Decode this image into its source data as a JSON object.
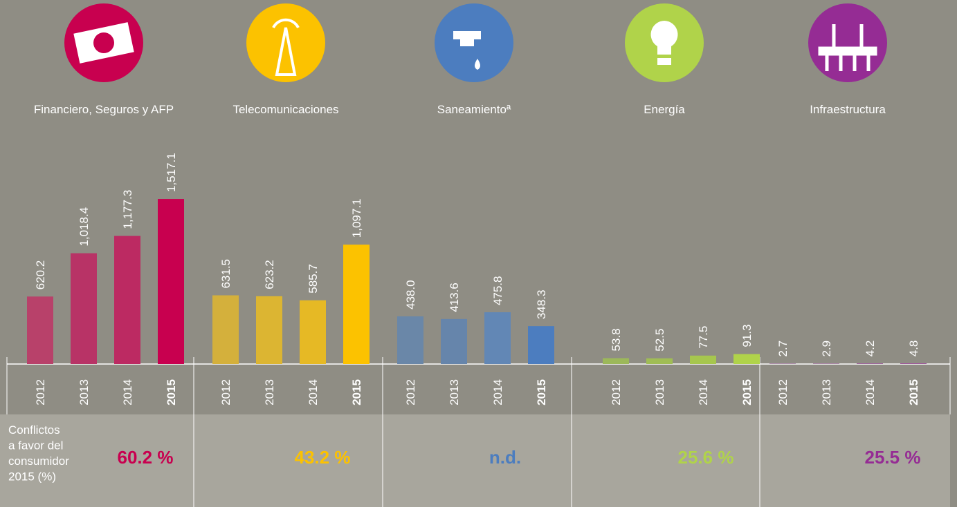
{
  "chart_data": [
    {
      "type": "bar",
      "title": "Financiero, Seguros y AFP",
      "categories": [
        "2012",
        "2013",
        "2014",
        "2015"
      ],
      "values": [
        620.2,
        1018.4,
        1177.3,
        1517.1
      ],
      "value_labels": [
        "620.2",
        "1,018.4",
        "1,177.3",
        "1,517.1"
      ],
      "colors": [
        "#b8416a",
        "#b83366",
        "#bc2a62",
        "#c8004f"
      ],
      "ylim": [
        0,
        1600
      ]
    },
    {
      "type": "bar",
      "title": "Telecomunicaciones",
      "categories": [
        "2012",
        "2013",
        "2014",
        "2015"
      ],
      "values": [
        631.5,
        623.2,
        585.7,
        1097.1
      ],
      "value_labels": [
        "631.5",
        "623.2",
        "585.7",
        "1,097.1"
      ],
      "colors": [
        "#d4b03c",
        "#dcb532",
        "#e6b925",
        "#fcc200"
      ],
      "ylim": [
        0,
        1600
      ]
    },
    {
      "type": "bar",
      "title": "Saneamientoª",
      "categories": [
        "2012",
        "2013",
        "2014",
        "2015"
      ],
      "values": [
        438.0,
        413.6,
        475.8,
        348.3
      ],
      "value_labels": [
        "438.0",
        "413.6",
        "475.8",
        "348.3"
      ],
      "colors": [
        "#6a87a8",
        "#6685ab",
        "#6287b5",
        "#4c7dbf"
      ],
      "ylim": [
        0,
        1600
      ]
    },
    {
      "type": "bar",
      "title": "Energía",
      "categories": [
        "2012",
        "2013",
        "2014",
        "2015"
      ],
      "values": [
        53.8,
        52.5,
        77.5,
        91.3
      ],
      "value_labels": [
        "53.8",
        "52.5",
        "77.5",
        "91.3"
      ],
      "colors": [
        "#9cb85a",
        "#a0bd55",
        "#a6c64e",
        "#b0d34a"
      ],
      "ylim": [
        0,
        1600
      ]
    },
    {
      "type": "bar",
      "title": "Infraestructura",
      "categories": [
        "2012",
        "2013",
        "2014",
        "2015"
      ],
      "values": [
        2.7,
        2.9,
        4.2,
        4.8
      ],
      "value_labels": [
        "2.7",
        "2.9",
        "4.2",
        "4.8"
      ],
      "colors": [
        "#8c3d8c",
        "#8a3689",
        "#8c2e8e",
        "#952c94"
      ],
      "ylim": [
        0,
        1600
      ]
    }
  ],
  "footer": {
    "label": [
      "Conflictos",
      "a favor del",
      "consumidor",
      "2015 (%)"
    ],
    "values": [
      "60.2 %",
      "43.2 %",
      "n.d.",
      "25.6 %",
      "25.5 %"
    ]
  }
}
